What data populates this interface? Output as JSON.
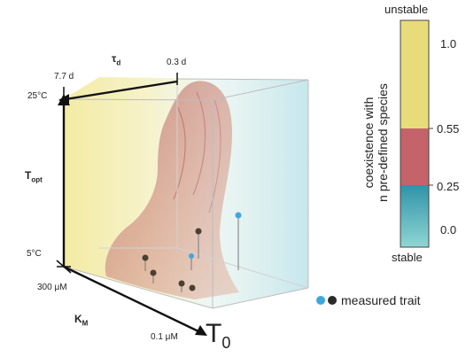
{
  "axes": {
    "tau_d": {
      "label_main": "τ",
      "label_sub": "d",
      "tick_high": "7.7 d",
      "tick_low": "0.3 d"
    },
    "t_opt": {
      "label_main": "T",
      "label_sub": "opt",
      "tick_high": "25°C",
      "tick_low": "5°C"
    },
    "k_m": {
      "label_main": "K",
      "label_sub": "M",
      "tick_high": "300 μM",
      "tick_low": "0.1 μM"
    },
    "t0": {
      "label_main": "T",
      "label_sub": "0"
    }
  },
  "colorbar": {
    "title_line1": "coexistence with",
    "title_line2": "n pre-defined species",
    "top_label": "unstable",
    "bottom_label": "stable",
    "ticks": [
      "1.0",
      "0.55",
      "0.25",
      "0.0"
    ],
    "colors": {
      "yellow": "#e8dc7a",
      "red": "#c4646a",
      "teal_top": "#2f93a8",
      "teal_bottom": "#8fd6d3"
    }
  },
  "legend": {
    "label": "measured trait",
    "colors": {
      "blue": "#3ea7dc",
      "dark": "#2a2a2a"
    }
  },
  "colors": {
    "trait_blue": "#3ea7dc",
    "trait_dark": "#4a3f33",
    "volume_yellow": "#efe69a",
    "volume_teal": "#bfe6ea",
    "surface_red": "#c98580"
  }
}
